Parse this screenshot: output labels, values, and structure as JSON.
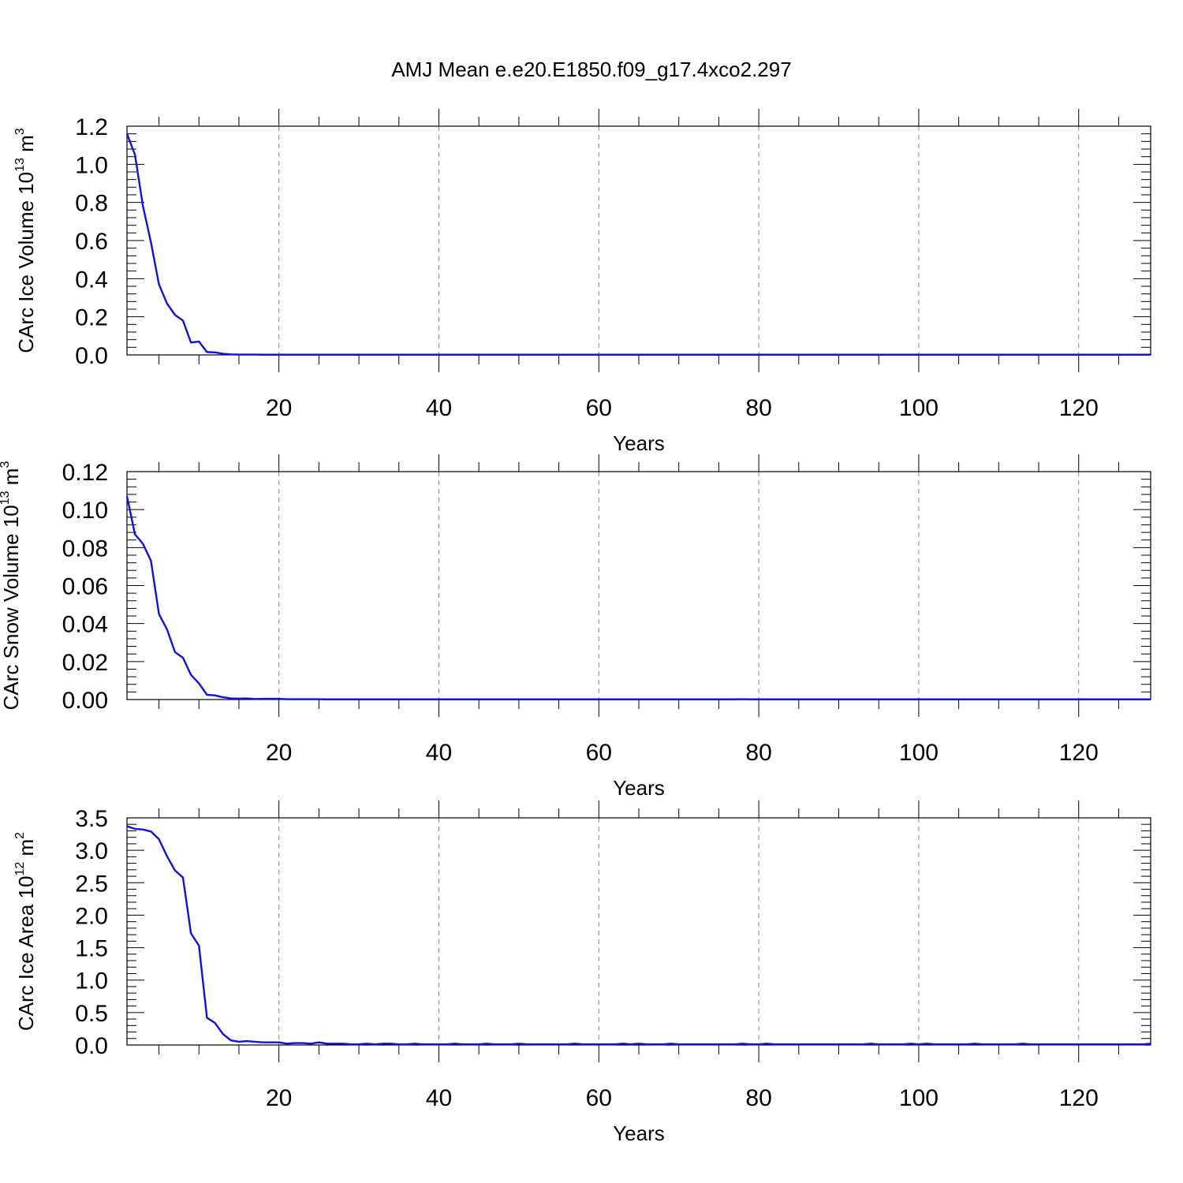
{
  "title": "AMJ Mean e.e20.E1850.f09_g17.4xco2.297",
  "line_color": "#1010e0",
  "chart_data": [
    {
      "type": "line",
      "ylabel": "CArc Ice Volume 10",
      "ylabel_exp": "13",
      "ylabel_unit": "m",
      "ylabel_unit_exp": "3",
      "xlabel": "Years",
      "xlim": [
        1,
        129
      ],
      "ylim": [
        0,
        1.2
      ],
      "xticks": [
        20,
        40,
        60,
        80,
        100,
        120
      ],
      "yticks": [
        "0.0",
        "0.2",
        "0.4",
        "0.6",
        "0.8",
        "1.0",
        "1.2"
      ],
      "grid_x": true,
      "series": [
        {
          "values": [
            1.16,
            1.05,
            0.78,
            0.59,
            0.37,
            0.27,
            0.21,
            0.18,
            0.065,
            0.07,
            0.015,
            0.013,
            0.006,
            0.003,
            0.002,
            0.002,
            0.002,
            0.001,
            0.001,
            0.001,
            0.001,
            0.001,
            0.001,
            0.001,
            0.001,
            0.001,
            0.001,
            0.001,
            0.001,
            0.001,
            0.001,
            0.001,
            0.001,
            0.001,
            0.001,
            0.001,
            0.001,
            0.001,
            0.001,
            0.001,
            0.001,
            0.001,
            0.001,
            0.001,
            0.001,
            0.001,
            0.001,
            0.001,
            0.001,
            0.001,
            0.001,
            0.001,
            0.001,
            0.001,
            0.001,
            0.001,
            0.001,
            0.001,
            0.001,
            0.001,
            0.001,
            0.001,
            0.001,
            0.001,
            0.001,
            0.001,
            0.001,
            0.001,
            0.001,
            0.001,
            0.001,
            0.001,
            0.001,
            0.001,
            0.001,
            0.001,
            0.001,
            0.001,
            0.001,
            0.001,
            0.001,
            0.001,
            0.001,
            0.001,
            0.001,
            0.001,
            0.001,
            0.001,
            0.001,
            0.001,
            0.001,
            0.001,
            0.001,
            0.001,
            0.001,
            0.001,
            0.001,
            0.001,
            0.001,
            0.001,
            0.001,
            0.001,
            0.001,
            0.001,
            0.001,
            0.001,
            0.001,
            0.001,
            0.001,
            0.001,
            0.001,
            0.001,
            0.001,
            0.001,
            0.001,
            0.001,
            0.001,
            0.001,
            0.001,
            0.001,
            0.001,
            0.001,
            0.001,
            0.001,
            0.001,
            0.001,
            0.001,
            0.001,
            0.001
          ]
        }
      ]
    },
    {
      "type": "line",
      "ylabel": "CArc Snow Volume 10",
      "ylabel_exp": "13",
      "ylabel_unit": "m",
      "ylabel_unit_exp": "3",
      "xlabel": "Years",
      "xlim": [
        1,
        129
      ],
      "ylim": [
        0,
        0.12
      ],
      "xticks": [
        20,
        40,
        60,
        80,
        100,
        120
      ],
      "yticks": [
        "0.00",
        "0.02",
        "0.04",
        "0.06",
        "0.08",
        "0.10",
        "0.12"
      ],
      "grid_x": true,
      "series": [
        {
          "values": [
            0.107,
            0.087,
            0.082,
            0.073,
            0.045,
            0.037,
            0.025,
            0.022,
            0.013,
            0.0085,
            0.0025,
            0.0022,
            0.0012,
            0.0006,
            0.0005,
            0.0006,
            0.0003,
            0.0004,
            0.0004,
            0.0004,
            0.0002,
            0.0002,
            0.0002,
            0.0002,
            0.0002,
            0.0001,
            0.0001,
            0.0001,
            0.0001,
            0.0001,
            0.0001,
            0.0001,
            0.0001,
            0.0001,
            0.0001,
            0.0001,
            0.0001,
            0.0001,
            0.0001,
            0.0001,
            0.0001,
            0.0001,
            0.0001,
            0.0001,
            0.0001,
            0.0001,
            0.0001,
            0.0001,
            0.0001,
            0.0001,
            0.0001,
            0.0001,
            0.0001,
            0.0001,
            0.0001,
            0.0001,
            0.0001,
            0.0001,
            0.0001,
            0.0001,
            0.0001,
            0.0001,
            0.0001,
            0.0001,
            0.0001,
            0.0001,
            0.0001,
            0.0001,
            0.0001,
            0.0001,
            0.0001,
            0.0001,
            0.0001,
            0.0001,
            0.0001,
            0.0001,
            0.0001,
            0.0002,
            0.0001,
            0.0001,
            0.0001,
            0.0001,
            0.0001,
            0.0001,
            0.0001,
            0.0001,
            0.0001,
            0.0001,
            0.0001,
            0.0001,
            0.0001,
            0.0001,
            0.0001,
            0.0001,
            0.0001,
            0.0001,
            0.0001,
            0.0001,
            0.0001,
            0.0001,
            0.0001,
            0.0001,
            0.0001,
            0.0001,
            0.0001,
            0.0001,
            0.0001,
            0.0001,
            0.0001,
            0.0001,
            0.0001,
            0.0001,
            0.0001,
            0.0001,
            0.0001,
            0.0001,
            0.0001,
            0.0001,
            0.0001,
            0.0001,
            0.0001,
            0.0001,
            0.0001,
            0.0001,
            0.0001,
            0.0001,
            0.0001,
            0.0001,
            0.0001
          ]
        }
      ]
    },
    {
      "type": "line",
      "ylabel": "CArc Ice Area 10",
      "ylabel_exp": "12",
      "ylabel_unit": "m",
      "ylabel_unit_exp": "2",
      "xlabel": "Years",
      "xlim": [
        1,
        129
      ],
      "ylim": [
        0,
        3.5
      ],
      "xticks": [
        20,
        40,
        60,
        80,
        100,
        120
      ],
      "yticks": [
        "0.0",
        "0.5",
        "1.0",
        "1.5",
        "2.0",
        "2.5",
        "3.0",
        "3.5"
      ],
      "grid_x": true,
      "series": [
        {
          "values": [
            3.37,
            3.33,
            3.32,
            3.29,
            3.17,
            2.91,
            2.69,
            2.58,
            1.72,
            1.53,
            0.42,
            0.34,
            0.17,
            0.07,
            0.05,
            0.06,
            0.05,
            0.04,
            0.04,
            0.04,
            0.02,
            0.03,
            0.03,
            0.02,
            0.04,
            0.02,
            0.02,
            0.02,
            0.01,
            0.01,
            0.02,
            0.01,
            0.02,
            0.02,
            0.01,
            0.01,
            0.02,
            0.01,
            0.01,
            0.01,
            0.01,
            0.02,
            0.01,
            0.01,
            0.01,
            0.02,
            0.01,
            0.01,
            0.01,
            0.02,
            0.01,
            0.01,
            0.01,
            0.01,
            0.01,
            0.01,
            0.02,
            0.01,
            0.01,
            0.01,
            0.01,
            0.01,
            0.02,
            0.01,
            0.02,
            0.01,
            0.01,
            0.01,
            0.02,
            0.01,
            0.01,
            0.01,
            0.01,
            0.01,
            0.01,
            0.01,
            0.01,
            0.02,
            0.01,
            0.01,
            0.02,
            0.01,
            0.01,
            0.01,
            0.01,
            0.01,
            0.01,
            0.01,
            0.01,
            0.01,
            0.01,
            0.01,
            0.01,
            0.02,
            0.01,
            0.01,
            0.01,
            0.01,
            0.02,
            0.01,
            0.02,
            0.01,
            0.01,
            0.01,
            0.01,
            0.01,
            0.02,
            0.01,
            0.01,
            0.01,
            0.01,
            0.01,
            0.02,
            0.01,
            0.01,
            0.01,
            0.01,
            0.01,
            0.01,
            0.01,
            0.01,
            0.01,
            0.01,
            0.01,
            0.01,
            0.01,
            0.01,
            0.01,
            0.02
          ]
        }
      ]
    }
  ]
}
